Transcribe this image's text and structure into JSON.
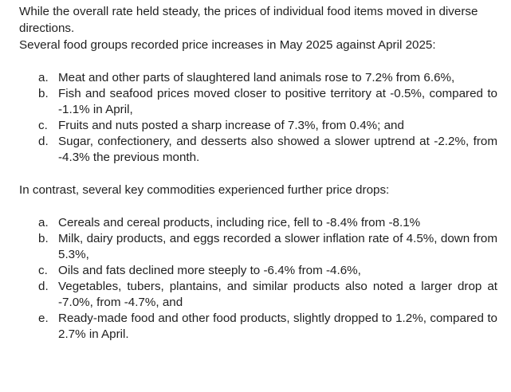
{
  "paragraphs": {
    "intro": "While the overall rate held steady, the prices of individual food items moved in diverse directions.",
    "increases_intro": "Several food groups recorded price increases in May 2025 against April 2025:",
    "drops_intro": "In contrast, several key commodities experienced further price drops:"
  },
  "increases": [
    {
      "marker": "a.",
      "text": "Meat and other parts of slaughtered land animals rose to 7.2% from 6.6%,"
    },
    {
      "marker": "b.",
      "text": "Fish and seafood prices moved closer to positive territory at -0.5%, compared to -1.1% in April,"
    },
    {
      "marker": "c.",
      "text": "Fruits and nuts posted a sharp increase of 7.3%, from 0.4%; and"
    },
    {
      "marker": "d.",
      "text": "Sugar, confectionery, and desserts also showed a slower uptrend at -2.2%, from -4.3% the previous month."
    }
  ],
  "drops": [
    {
      "marker": "a.",
      "text": "Cereals and cereal products, including rice, fell to -8.4% from -8.1%"
    },
    {
      "marker": "b.",
      "text": "Milk, dairy products, and eggs recorded a slower inflation rate of 4.5%, down from 5.3%,"
    },
    {
      "marker": "c.",
      "text": "Oils and fats declined more steeply to -6.4% from -4.6%,"
    },
    {
      "marker": "d.",
      "text": "Vegetables, tubers, plantains, and similar products also noted a larger drop at -7.0%, from -4.7%, and"
    },
    {
      "marker": "e.",
      "text": "Ready-made food and other food products, slightly dropped to 1.2%, compared to 2.7% in April."
    }
  ]
}
